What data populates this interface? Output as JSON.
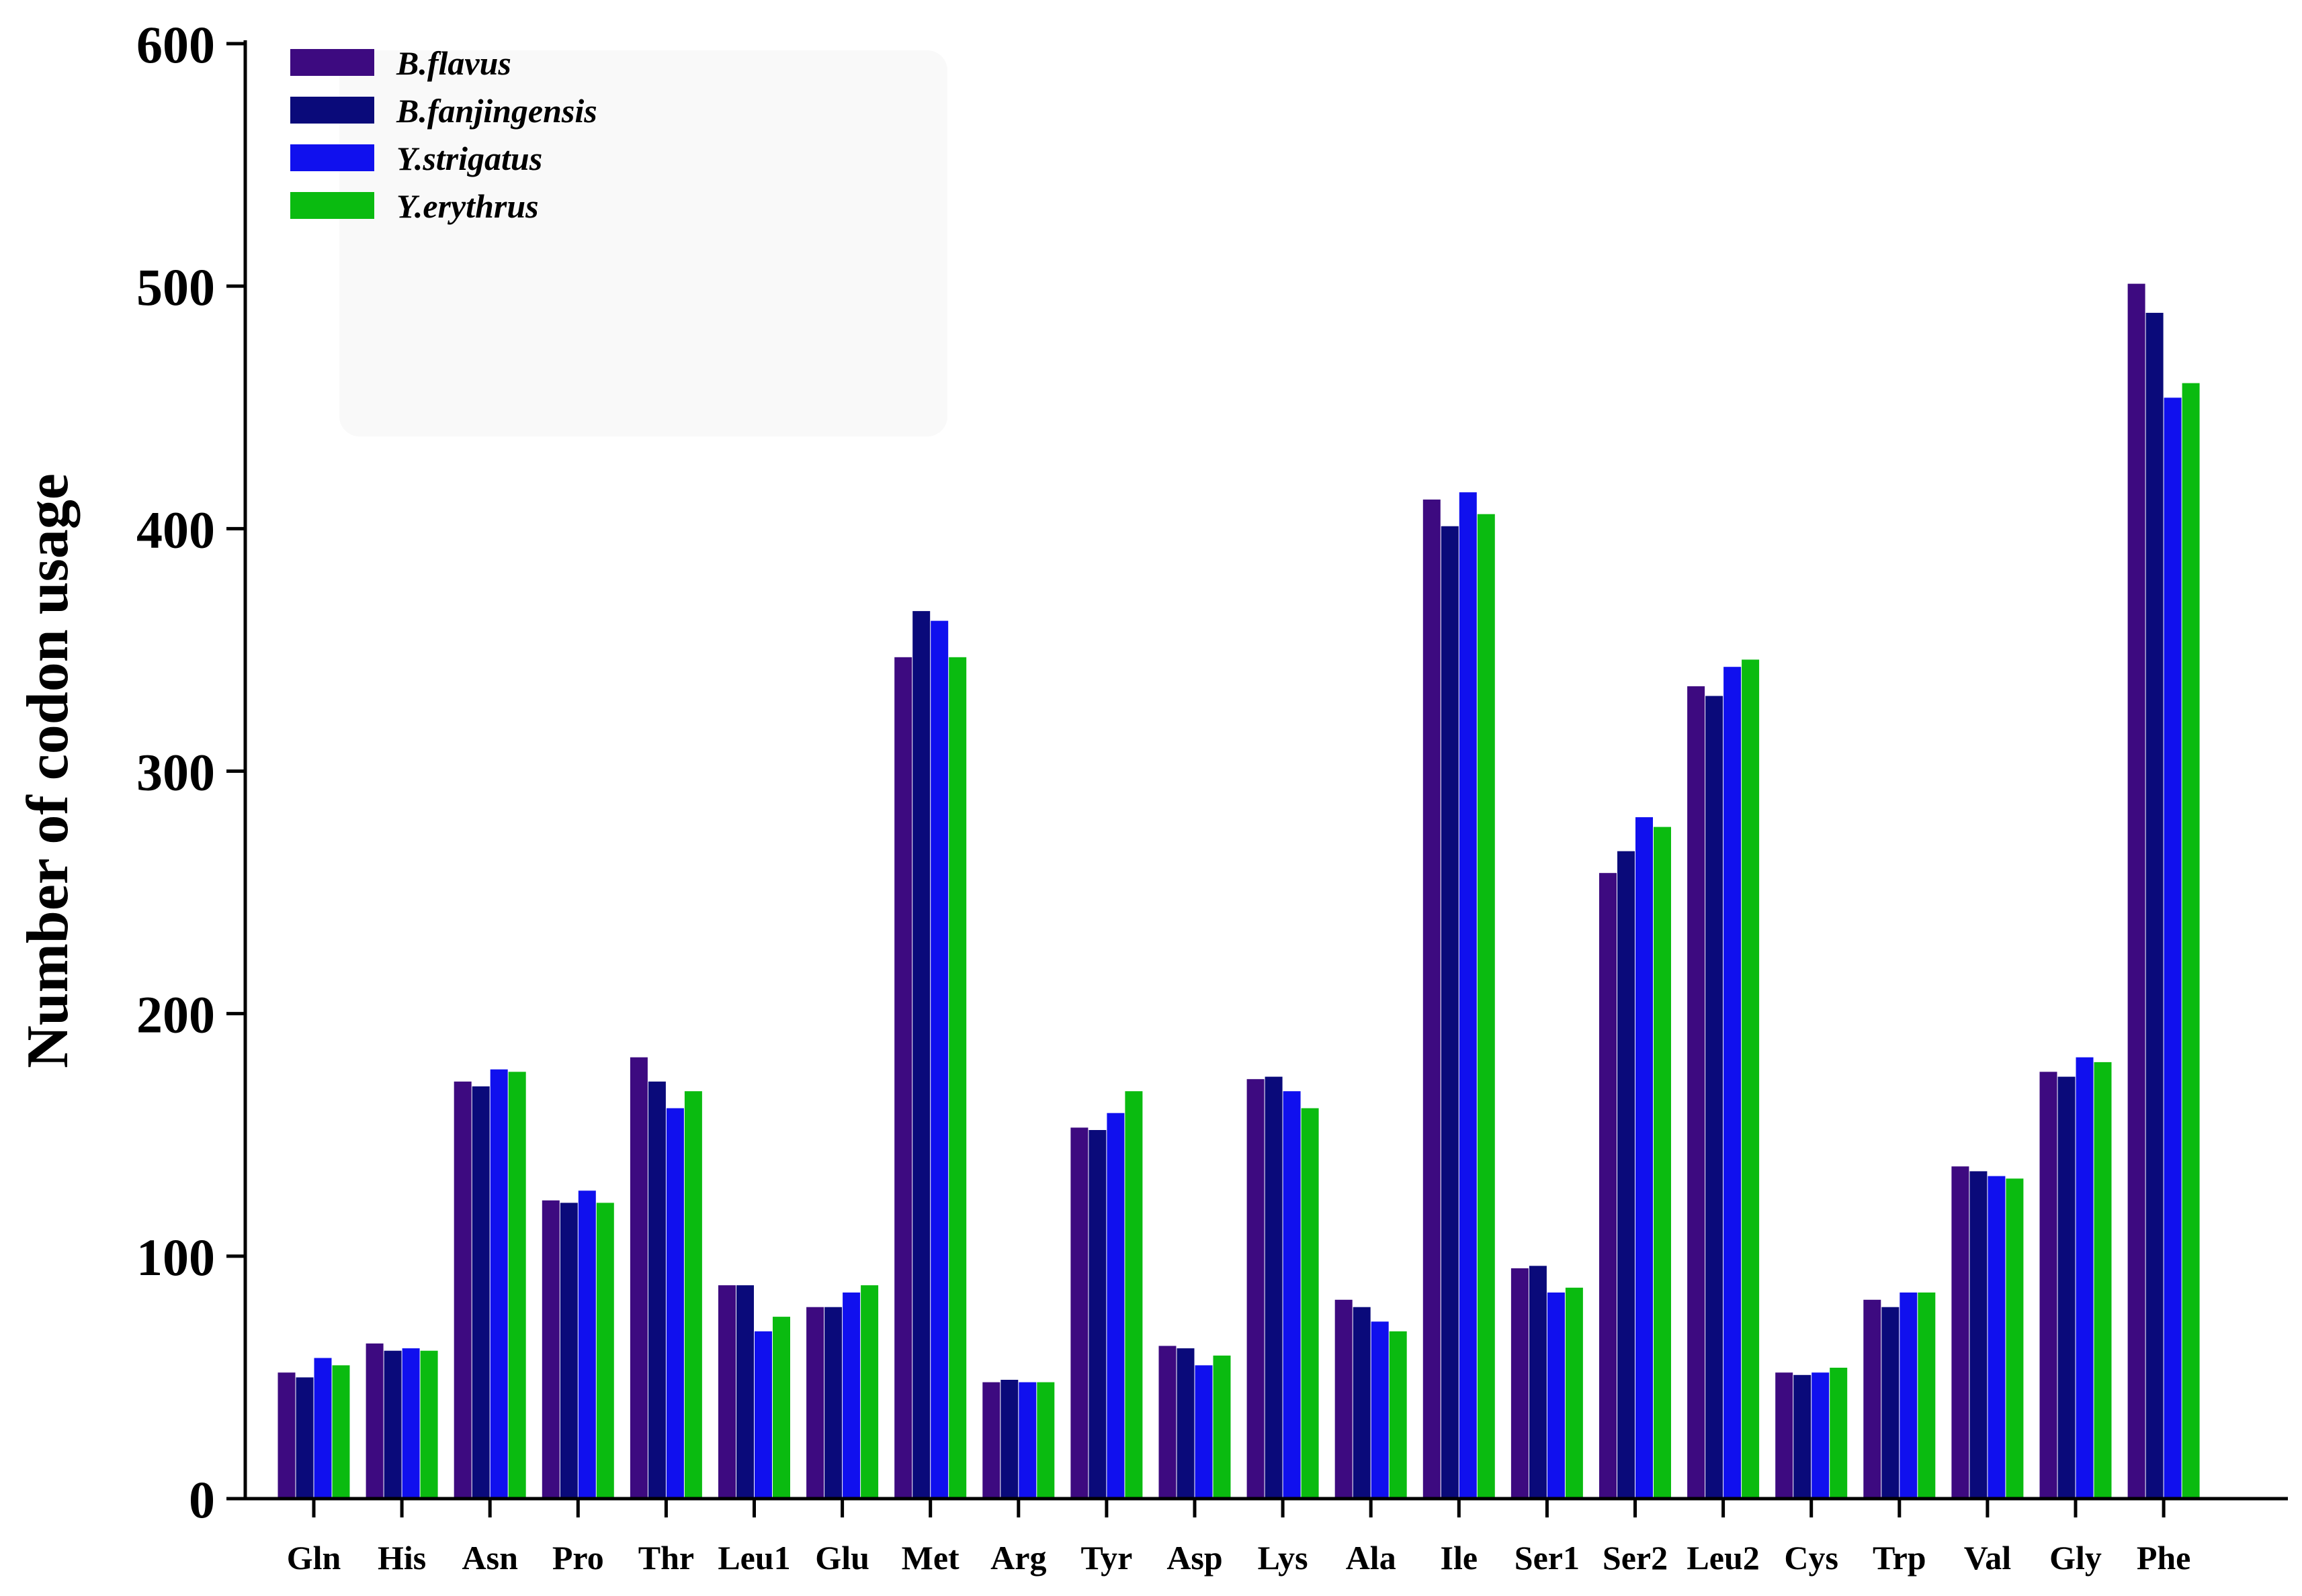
{
  "chart_data": {
    "type": "bar",
    "title": "",
    "xlabel": "",
    "ylabel": "Number of codon usage",
    "ylim": [
      0,
      600
    ],
    "yticks": [
      0,
      100,
      200,
      300,
      400,
      500,
      600
    ],
    "grid": false,
    "legend_position": "top-left",
    "categories": [
      "Gln",
      "His",
      "Asn",
      "Pro",
      "Thr",
      "Leu1",
      "Glu",
      "Met",
      "Arg",
      "Tyr",
      "Asp",
      "Lys",
      "Ala",
      "Ile",
      "Ser1",
      "Ser2",
      "Leu2",
      "Cys",
      "Trp",
      "Val",
      "Gly",
      "Phe"
    ],
    "series": [
      {
        "name": "B.flavus",
        "color": "#3d0a80",
        "values": [
          52,
          64,
          172,
          123,
          182,
          88,
          79,
          347,
          48,
          153,
          63,
          173,
          82,
          412,
          95,
          258,
          335,
          52,
          82,
          137,
          176,
          501
        ]
      },
      {
        "name": "B.fanjingensis",
        "color": "#0a0a7a",
        "values": [
          50,
          61,
          170,
          122,
          172,
          88,
          79,
          366,
          49,
          152,
          62,
          174,
          79,
          401,
          96,
          267,
          331,
          51,
          79,
          135,
          174,
          489
        ]
      },
      {
        "name": "Y.strigatus",
        "color": "#1010ee",
        "values": [
          58,
          62,
          177,
          127,
          161,
          69,
          85,
          362,
          48,
          159,
          55,
          168,
          73,
          415,
          85,
          281,
          343,
          52,
          85,
          133,
          182,
          454
        ]
      },
      {
        "name": "Y.erythrus",
        "color": "#0abb10",
        "values": [
          55,
          61,
          176,
          122,
          168,
          75,
          88,
          347,
          48,
          168,
          59,
          161,
          69,
          406,
          87,
          277,
          346,
          54,
          85,
          132,
          180,
          460
        ]
      }
    ]
  }
}
